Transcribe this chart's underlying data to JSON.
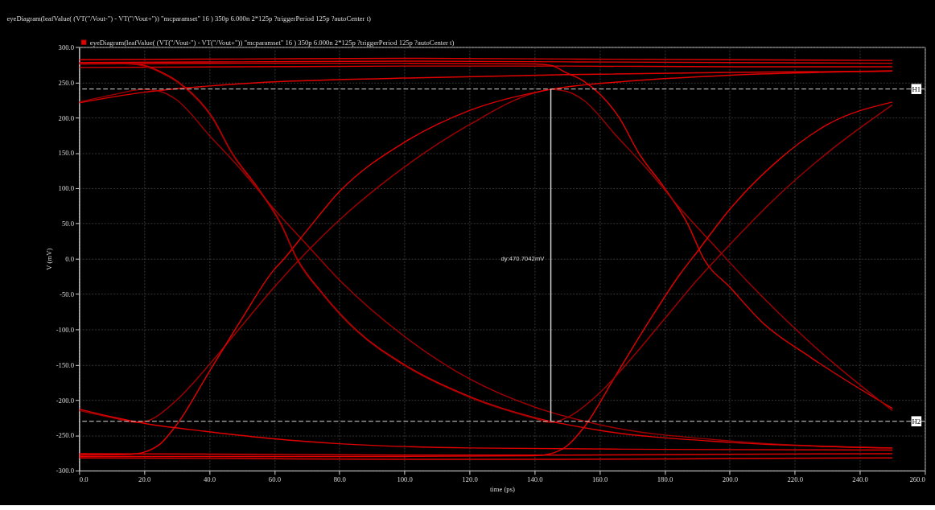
{
  "chart_data": {
    "type": "line",
    "title": "eyeDiagram(leafValue( (VT(\"/Vout-\") - VT(\"/Vout+\")) \"mcparamset\" 16 ) 350p 6.000n 2*125p ?triggerPeriod 125p ?autoCenter t)",
    "xlabel": "time (ps)",
    "ylabel": "V (mV)",
    "xlim": [
      0,
      260
    ],
    "xticks": [
      {
        "value": 0,
        "label": "0.0"
      },
      {
        "value": 20,
        "label": "20.0"
      },
      {
        "value": 40,
        "label": "40.0"
      },
      {
        "value": 60,
        "label": "60.0"
      },
      {
        "value": 80,
        "label": "80.0"
      },
      {
        "value": 100,
        "label": "100.0"
      },
      {
        "value": 120,
        "label": "120.0"
      },
      {
        "value": 140,
        "label": "140.0"
      },
      {
        "value": 160,
        "label": "160.0"
      },
      {
        "value": 180,
        "label": "180.0"
      },
      {
        "value": 200,
        "label": "200.0"
      },
      {
        "value": 220,
        "label": "220.0"
      },
      {
        "value": 240,
        "label": "240.0"
      },
      {
        "value": 260,
        "label": "260.0"
      }
    ],
    "ylim": [
      -300,
      300
    ],
    "yticks": [
      {
        "value": -300,
        "label": "-300.0"
      },
      {
        "value": -250,
        "label": "-250.0"
      },
      {
        "value": -200,
        "label": "-200.0"
      },
      {
        "value": -150,
        "label": "-150.0"
      },
      {
        "value": -100,
        "label": "-100.0"
      },
      {
        "value": -50,
        "label": "-50.0"
      },
      {
        "value": 0,
        "label": "0.0"
      },
      {
        "value": 50,
        "label": "50.0"
      },
      {
        "value": 100,
        "label": "100.0"
      },
      {
        "value": 150,
        "label": "150.0"
      },
      {
        "value": 200,
        "label": "200.0"
      },
      {
        "value": 250,
        "label": "250.0"
      },
      {
        "value": 300,
        "label": "300.0"
      }
    ],
    "grid": true,
    "legend": "top left",
    "marker": "none",
    "line_style": "solid",
    "series": [
      {
        "name": "eyeDiagram(leafValue( (VT(\"/Vout-\") - VT(\"/Vout+\")) \"mcparamset\" 16 ) 350p 6.000n 2*125p ?triggerPeriod 125p ?autoCenter t)",
        "color": "#e00000",
        "x": [
          0,
          50,
          100,
          150,
          200,
          250
        ],
        "values": [
          282,
          283,
          284,
          283,
          282,
          281
        ]
      },
      {
        "color": "#e00000",
        "x": [
          0,
          50,
          100,
          150,
          200,
          250
        ],
        "values": [
          278,
          279,
          280,
          279,
          278,
          277
        ]
      },
      {
        "color": "#e00000",
        "x": [
          0,
          50,
          100,
          150,
          200,
          250
        ],
        "values": [
          271,
          272,
          273,
          273,
          272,
          272
        ]
      },
      {
        "color": "#e00000",
        "x": [
          0,
          20,
          50,
          100,
          150,
          200,
          250
        ],
        "values": [
          221,
          236,
          248,
          256,
          261,
          264,
          266
        ]
      },
      {
        "color": "#a00000",
        "x": [
          0,
          10,
          20,
          25,
          30,
          40,
          50,
          60,
          70,
          80,
          100,
          120,
          140,
          160,
          200,
          250
        ],
        "values": [
          222,
          232,
          240,
          237,
          225,
          175,
          125,
          70,
          20,
          -30,
          -110,
          -170,
          -210,
          -235,
          -258,
          -268
        ]
      },
      {
        "color": "#e00000",
        "x": [
          0,
          15,
          20,
          25,
          30,
          41,
          47,
          55,
          62,
          67,
          75,
          85,
          100,
          120,
          140,
          160,
          200,
          250
        ],
        "values": [
          278,
          277,
          274,
          265,
          252,
          200,
          150,
          100,
          50,
          0,
          -50,
          -100,
          -150,
          -195,
          -225,
          -243,
          -260,
          -268
        ]
      },
      {
        "color": "#e00000",
        "x": [
          0,
          50,
          100,
          140,
          145,
          150,
          155,
          166,
          172,
          180,
          187,
          192,
          200,
          210,
          225,
          250
        ],
        "values": [
          276,
          277,
          277,
          276,
          274,
          263,
          252,
          200,
          150,
          100,
          50,
          0,
          -40,
          -90,
          -140,
          -212
        ]
      },
      {
        "color": "#a00000",
        "x": [
          0,
          10,
          18,
          22,
          30,
          40,
          50,
          60,
          70,
          80,
          100,
          120,
          140,
          145,
          150,
          155,
          165,
          175,
          185,
          195,
          205,
          225,
          250
        ],
        "values": [
          -215,
          -225,
          -232,
          -228,
          -200,
          -150,
          -95,
          -40,
          10,
          55,
          130,
          190,
          235,
          240,
          237,
          225,
          175,
          125,
          70,
          20,
          -30,
          -120,
          -215
        ]
      },
      {
        "color": "#e00000",
        "x": [
          0,
          16,
          20,
          25,
          30,
          40,
          50,
          60,
          63,
          70,
          80,
          100,
          120,
          145,
          170,
          200,
          250
        ],
        "values": [
          -278,
          -277,
          -274,
          -262,
          -235,
          -160,
          -85,
          -15,
          0,
          40,
          95,
          165,
          210,
          240,
          252,
          260,
          266
        ]
      },
      {
        "color": "#e00000",
        "x": [
          0,
          50,
          100,
          140,
          145,
          150,
          155,
          165,
          175,
          185,
          190,
          200,
          215,
          230,
          250
        ],
        "values": [
          -280,
          -280,
          -280,
          -279,
          -276,
          -265,
          -240,
          -165,
          -90,
          -20,
          10,
          70,
          140,
          190,
          222
        ]
      },
      {
        "color": "#e00000",
        "x": [
          0,
          50,
          100,
          150,
          200,
          250
        ],
        "values": [
          -282,
          -283,
          -284,
          -284,
          -283,
          -282
        ]
      },
      {
        "color": "#e00000",
        "x": [
          0,
          50,
          100,
          150,
          200,
          250
        ],
        "values": [
          -276,
          -277,
          -278,
          -278,
          -277,
          -276
        ]
      },
      {
        "color": "#e00000",
        "x": [
          0,
          10,
          20,
          40,
          60,
          80,
          120,
          180,
          250
        ],
        "values": [
          -213,
          -224,
          -233,
          -245,
          -255,
          -262,
          -268,
          -270,
          -271
        ]
      },
      {
        "color": "#d8d8d8",
        "x": [
          145,
          145
        ],
        "values": [
          240.5,
          -230.2
        ]
      },
      {
        "color": "#a00000",
        "x": [
          0,
          15,
          20,
          25,
          30,
          41,
          47,
          55,
          62,
          67,
          75,
          85,
          100,
          120,
          140,
          145,
          150,
          160,
          170,
          180,
          190,
          200,
          215,
          230,
          250
        ],
        "values": [
          277,
          276,
          273,
          264,
          251,
          199,
          149,
          99,
          49,
          -1,
          -51,
          -101,
          -151,
          -196,
          -226,
          -232,
          -225,
          -190,
          -140,
          -85,
          -30,
          20,
          90,
          150,
          218
        ]
      }
    ],
    "ref_lines": [
      {
        "axis": "y",
        "value": 240.5,
        "label": "H1",
        "color": "#e0e0e0",
        "line_style": "dashed"
      },
      {
        "axis": "y",
        "value": -230.2,
        "label": "H2",
        "color": "#e0e0e0",
        "line_style": "dashed"
      }
    ],
    "annotations": [
      "dy:470.7042mV"
    ]
  }
}
